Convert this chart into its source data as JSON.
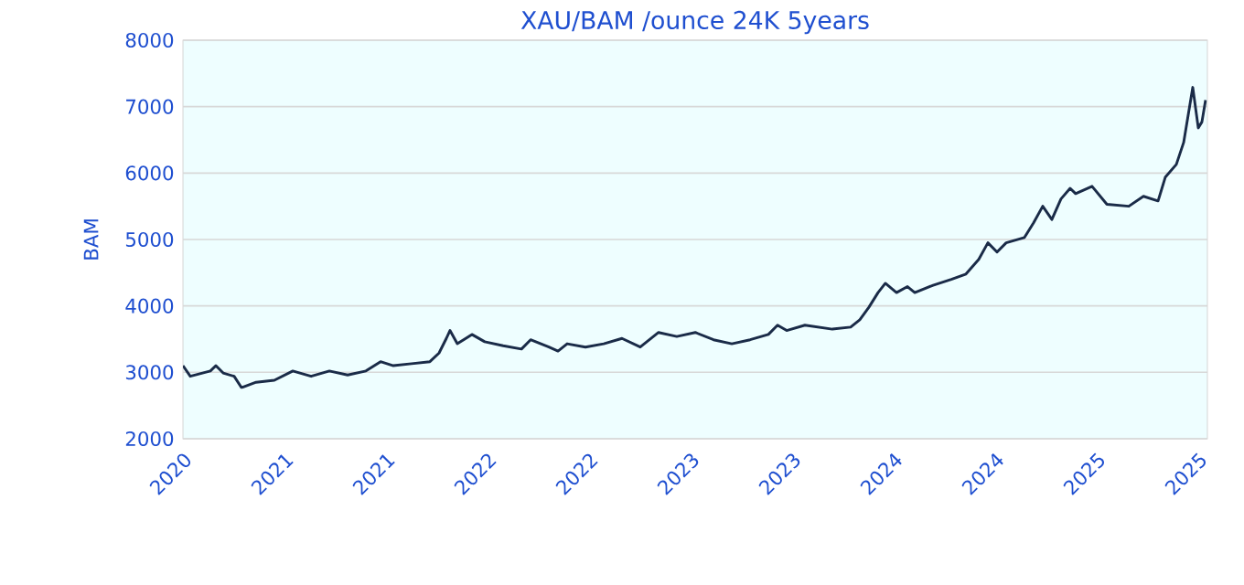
{
  "chart_data": {
    "type": "line",
    "title": "XAU/BAM /ounce 24K 5years",
    "ylabel": "BAM",
    "x": [
      2020.2,
      2020.236,
      2020.335,
      2020.362,
      2020.398,
      2020.452,
      2020.488,
      2020.56,
      2020.65,
      2020.741,
      2020.831,
      2020.921,
      2021.011,
      2021.101,
      2021.173,
      2021.236,
      2021.326,
      2021.416,
      2021.461,
      2021.497,
      2021.515,
      2021.551,
      2021.623,
      2021.686,
      2021.777,
      2021.867,
      2021.912,
      2022.002,
      2022.047,
      2022.092,
      2022.182,
      2022.272,
      2022.362,
      2022.452,
      2022.542,
      2022.632,
      2022.723,
      2022.813,
      2022.903,
      2022.993,
      2023.083,
      2023.128,
      2023.173,
      2023.263,
      2023.398,
      2023.488,
      2023.533,
      2023.578,
      2023.623,
      2023.659,
      2023.714,
      2023.768,
      2023.804,
      2023.894,
      2023.984,
      2024.056,
      2024.119,
      2024.164,
      2024.209,
      2024.254,
      2024.344,
      2024.389,
      2024.434,
      2024.479,
      2024.524,
      2024.569,
      2024.596,
      2024.677,
      2024.75,
      2024.858,
      2024.93,
      2025.002,
      2025.038,
      2025.092,
      2025.128,
      2025.173,
      2025.2,
      2025.218,
      2025.236
    ],
    "series": [
      {
        "color": "#1a2b48",
        "values": [
          3100,
          2940,
          3020,
          3100,
          2990,
          2940,
          2770,
          2850,
          2880,
          3020,
          2940,
          3020,
          2960,
          3020,
          3160,
          3100,
          3130,
          3160,
          3290,
          3510,
          3630,
          3430,
          3570,
          3460,
          3400,
          3350,
          3490,
          3380,
          3320,
          3430,
          3380,
          3430,
          3510,
          3380,
          3600,
          3540,
          3600,
          3490,
          3430,
          3490,
          3570,
          3710,
          3630,
          3710,
          3650,
          3680,
          3790,
          3980,
          4200,
          4340,
          4200,
          4290,
          4200,
          4310,
          4400,
          4480,
          4700,
          4950,
          4810,
          4950,
          5030,
          5250,
          5500,
          5300,
          5610,
          5770,
          5690,
          5800,
          5530,
          5500,
          5650,
          5580,
          5940,
          6130,
          6460,
          7290,
          6680,
          6770,
          7100
        ]
      }
    ],
    "xlim": [
      2020.2,
      2025.245
    ],
    "xticks": [
      {
        "value": 2020.2,
        "label": "2020"
      },
      {
        "value": 2020.7,
        "label": "2021"
      },
      {
        "value": 2021.2,
        "label": "2021"
      },
      {
        "value": 2021.7,
        "label": "2022"
      },
      {
        "value": 2022.2,
        "label": "2022"
      },
      {
        "value": 2022.7,
        "label": "2023"
      },
      {
        "value": 2023.2,
        "label": "2023"
      },
      {
        "value": 2023.7,
        "label": "2024"
      },
      {
        "value": 2024.2,
        "label": "2024"
      },
      {
        "value": 2024.7,
        "label": "2025"
      },
      {
        "value": 2025.2,
        "label": "2025"
      }
    ],
    "ylim": [
      2000,
      8000
    ],
    "yticks": [
      2000,
      3000,
      4000,
      5000,
      6000,
      7000,
      8000
    ],
    "grid": "y"
  }
}
